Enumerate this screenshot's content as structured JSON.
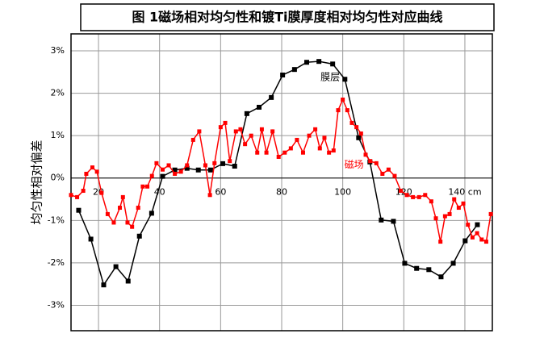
{
  "chart_data": {
    "type": "line",
    "title": "图 1磁场相对均匀性和镀Ti膜厚度相对均匀性对应曲线",
    "y_label": "均匀性相对偏差",
    "xlim": [
      11,
      149
    ],
    "ylim": [
      -3.6,
      3.4
    ],
    "xticks": [
      20,
      40,
      60,
      80,
      100,
      120,
      {
        "value": 140,
        "label": "140 cm"
      }
    ],
    "yticks": [
      {
        "value": 3,
        "label": "3%"
      },
      {
        "value": 2,
        "label": "2%"
      },
      {
        "value": 1,
        "label": "1%"
      },
      {
        "value": 0,
        "label": "0%"
      },
      {
        "value": -1,
        "label": "-1%"
      },
      {
        "value": -2,
        "label": "-2%"
      },
      {
        "value": -3,
        "label": "-3%"
      }
    ],
    "grid": true,
    "series": [
      {
        "name": "膜层",
        "color": "#000000",
        "x": [
          13.5,
          17.5,
          21.7,
          25.7,
          29.7,
          33.4,
          37.4,
          41,
          45,
          49,
          52.7,
          56.7,
          60.7,
          64.6,
          68.6,
          72.6,
          76.6,
          80.3,
          84.2,
          88.2,
          92.2,
          96.7,
          100.7,
          105.2,
          108.9,
          112.6,
          116.6,
          120.3,
          124.2,
          128.2,
          132.2,
          136.2,
          140.1,
          144.1
        ],
        "values": [
          -0.76,
          -1.44,
          -2.52,
          -2.09,
          -2.43,
          -1.37,
          -0.83,
          0.04,
          0.19,
          0.23,
          0.19,
          0.19,
          0.34,
          0.28,
          1.52,
          1.67,
          1.9,
          2.43,
          2.56,
          2.73,
          2.75,
          2.69,
          2.33,
          0.95,
          0.38,
          -0.99,
          -1.02,
          -2.01,
          -2.13,
          -2.16,
          -2.33,
          -2.01,
          -1.48,
          -1.1
        ]
      },
      {
        "name": "磁场",
        "color": "#ff0000",
        "x": [
          11,
          13,
          15,
          16,
          18,
          19.5,
          21,
          23,
          25,
          27,
          28,
          29.5,
          31,
          33,
          34.5,
          36,
          37.5,
          39,
          41,
          43,
          45,
          47,
          49,
          51,
          53,
          55,
          56.5,
          58,
          60,
          61.5,
          63,
          65,
          66.5,
          68,
          70,
          72,
          73.5,
          75,
          77,
          79,
          81,
          83,
          85,
          87,
          89,
          91,
          92.5,
          94,
          95.5,
          97,
          98.5,
          100,
          101.5,
          103,
          104.5,
          106,
          107.5,
          109,
          111,
          113,
          115,
          117,
          119,
          121,
          123,
          125,
          127,
          129,
          130.5,
          132,
          133.5,
          135,
          136.5,
          138,
          139.5,
          141,
          142.5,
          144,
          145.5,
          147,
          148.5
        ],
        "values": [
          -0.4,
          -0.45,
          -0.3,
          0.1,
          0.25,
          0.15,
          -0.35,
          -0.85,
          -1.05,
          -0.7,
          -0.45,
          -1.05,
          -1.15,
          -0.7,
          -0.2,
          -0.2,
          0.05,
          0.35,
          0.2,
          0.3,
          0.1,
          0.15,
          0.3,
          0.9,
          1.1,
          0.3,
          -0.4,
          0.35,
          1.2,
          1.3,
          0.4,
          1.1,
          1.15,
          0.8,
          1.0,
          0.6,
          1.15,
          0.6,
          1.1,
          0.5,
          0.6,
          0.7,
          0.9,
          0.6,
          1.0,
          1.15,
          0.7,
          0.95,
          0.6,
          0.65,
          1.6,
          1.85,
          1.6,
          1.3,
          1.2,
          1.05,
          0.55,
          0.4,
          0.35,
          0.1,
          0.2,
          0.05,
          -0.3,
          -0.4,
          -0.45,
          -0.45,
          -0.4,
          -0.55,
          -0.95,
          -1.5,
          -0.9,
          -0.85,
          -0.5,
          -0.7,
          -0.6,
          -1.1,
          -1.4,
          -1.3,
          -1.45,
          -1.5,
          -0.85
        ]
      }
    ]
  }
}
